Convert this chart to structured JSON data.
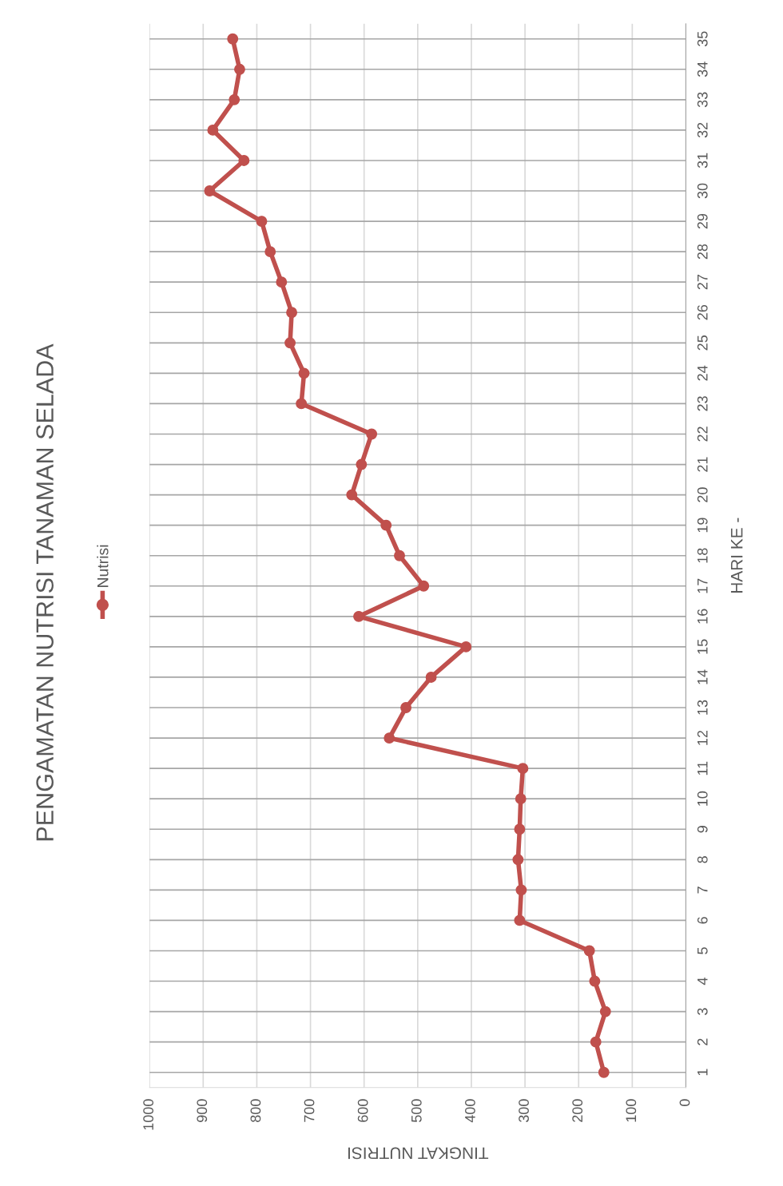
{
  "chart_data": {
    "type": "line",
    "orientation": "horizontal",
    "title": "PENGAMATAN NUTRISI TANAMAN SELADA",
    "xlabel": "TINGKAT NUTRISI",
    "ylabel": "HARI KE -",
    "categories": [
      "35",
      "34",
      "33",
      "32",
      "31",
      "30",
      "29",
      "28",
      "27",
      "26",
      "25",
      "24",
      "23",
      "22",
      "21",
      "20",
      "19",
      "18",
      "17",
      "16",
      "15",
      "14",
      "13",
      "12",
      "11",
      "10",
      "9",
      "8",
      "7",
      "6",
      "5",
      "4",
      "3",
      "2",
      "1"
    ],
    "series": [
      {
        "name": "Nutrisi",
        "color": "#c0504d",
        "values": [
          845,
          832,
          842,
          882,
          824,
          888,
          791,
          775,
          754,
          735,
          738,
          712,
          717,
          586,
          605,
          623,
          559,
          534,
          489,
          610,
          410,
          475,
          522,
          553,
          304,
          308,
          310,
          313,
          307,
          310,
          180,
          170,
          150,
          168,
          153
        ]
      }
    ],
    "xlim": [
      1000,
      0
    ],
    "xticks": [
      1000,
      900,
      800,
      700,
      600,
      500,
      400,
      300,
      200,
      100,
      0
    ],
    "grid": true,
    "legend": "left",
    "marker": "circle",
    "line_style": "solid"
  }
}
